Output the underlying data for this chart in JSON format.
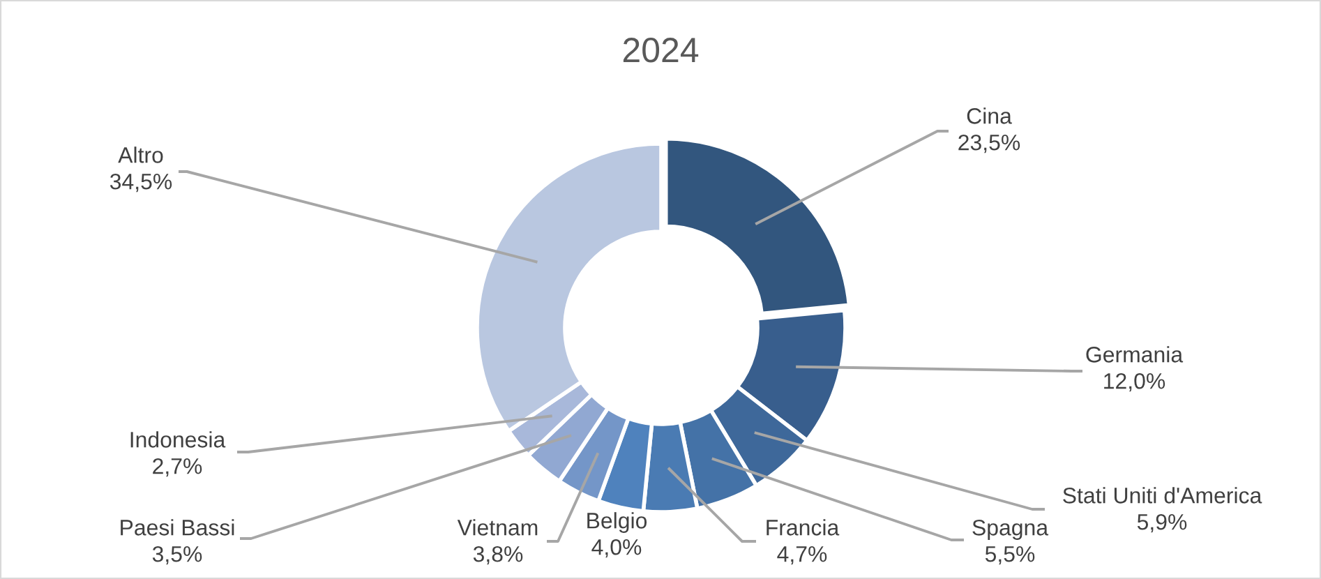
{
  "chart_data": {
    "type": "donut",
    "title": "2024",
    "categories": [
      "Cina",
      "Germania",
      "Stati Uniti d'America",
      "Spagna",
      "Francia",
      "Belgio",
      "Vietnam",
      "Paesi Bassi",
      "Indonesia",
      "Altro"
    ],
    "values": [
      23.5,
      12.0,
      5.9,
      5.5,
      4.7,
      4.0,
      3.8,
      3.5,
      2.7,
      34.5
    ],
    "value_labels": [
      "23,5%",
      "12,0%",
      "5,9%",
      "5,5%",
      "4,7%",
      "4,0%",
      "3,8%",
      "3,5%",
      "2,7%",
      "34,5%"
    ],
    "colors": [
      "#32567e",
      "#385e8d",
      "#3e689a",
      "#4472a7",
      "#4a7bb3",
      "#4f82bd",
      "#7496c8",
      "#91a8d2",
      "#a8b8da",
      "#b9c7e0"
    ],
    "legend": false
  }
}
